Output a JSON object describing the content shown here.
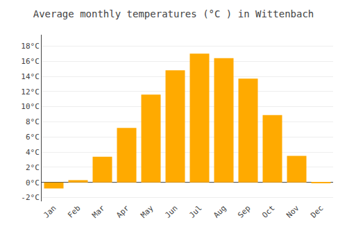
{
  "chart_data": {
    "type": "bar",
    "title": "Average monthly temperatures (°C ) in Wittenbach",
    "categories": [
      "Jan",
      "Feb",
      "Mar",
      "Apr",
      "May",
      "Jun",
      "Jul",
      "Aug",
      "Sep",
      "Oct",
      "Nov",
      "Dec"
    ],
    "values": [
      -0.8,
      0.3,
      3.4,
      7.2,
      11.6,
      14.8,
      17.0,
      16.4,
      13.7,
      8.9,
      3.5,
      -0.1
    ],
    "color": "#FFAA00",
    "ylim": [
      -2.5,
      19.5
    ],
    "yticks": [
      {
        "value": -2,
        "label": "-2°C"
      },
      {
        "value": 0,
        "label": "0°C"
      },
      {
        "value": 2,
        "label": "2°C"
      },
      {
        "value": 4,
        "label": "4°C"
      },
      {
        "value": 6,
        "label": "6°C"
      },
      {
        "value": 8,
        "label": "8°C"
      },
      {
        "value": 10,
        "label": "10°C"
      },
      {
        "value": 12,
        "label": "12°C"
      },
      {
        "value": 14,
        "label": "14°C"
      },
      {
        "value": 16,
        "label": "16°C"
      },
      {
        "value": 18,
        "label": "18°C"
      }
    ],
    "grid": true
  }
}
